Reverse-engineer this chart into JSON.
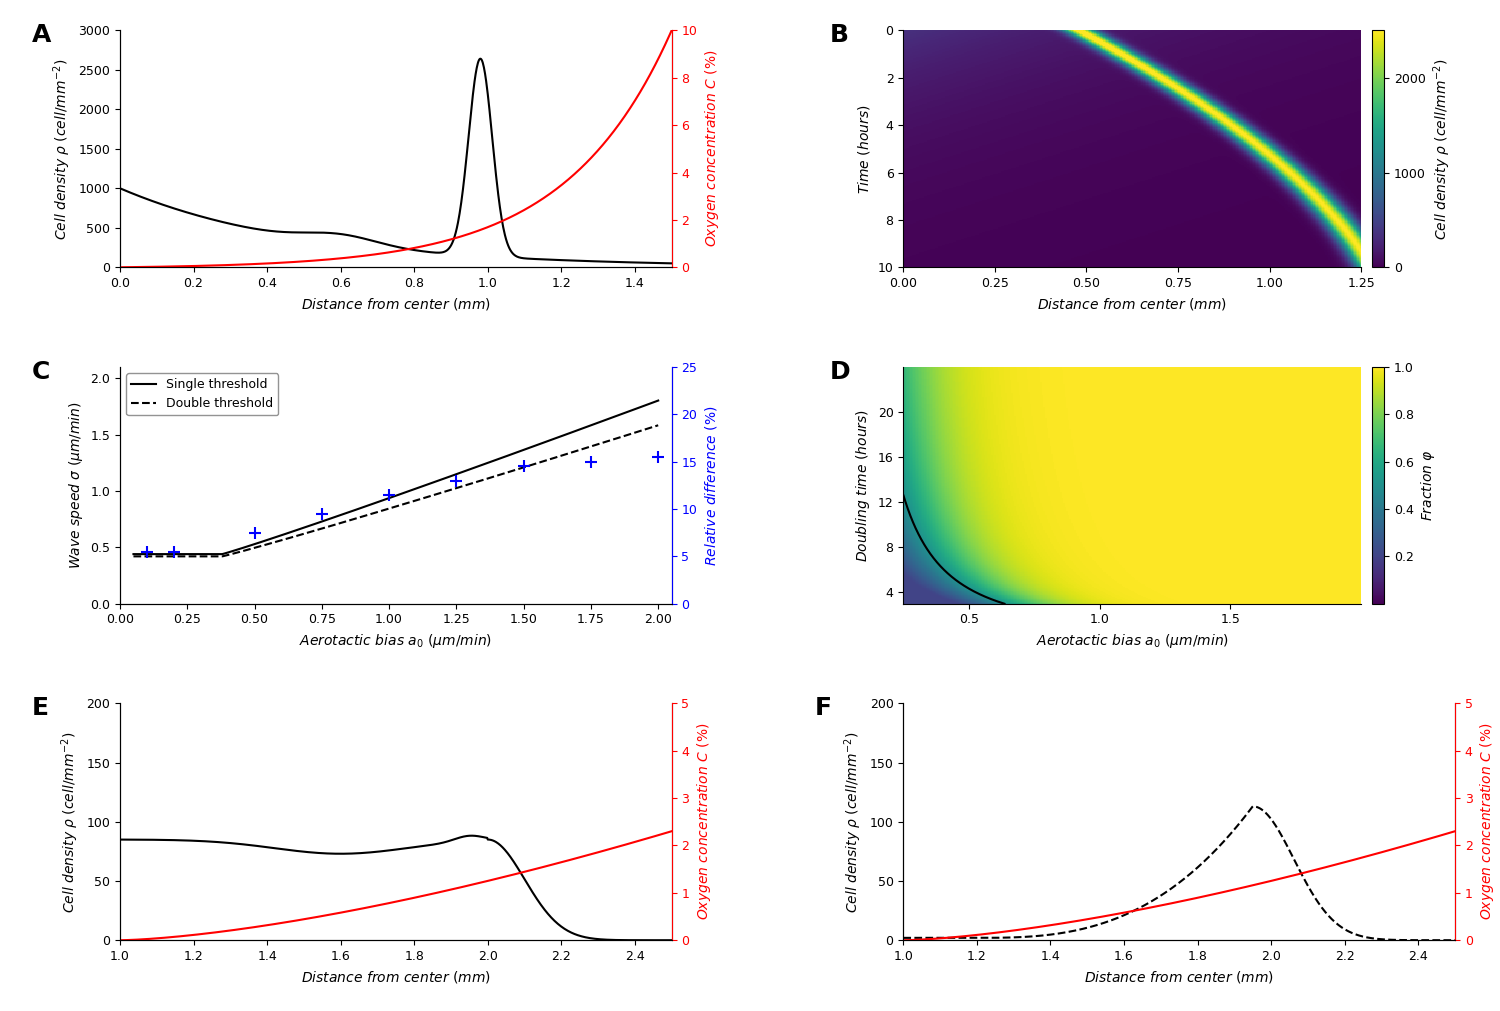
{
  "panel_label_fontsize": 18,
  "figsize": [
    15.0,
    10.11
  ],
  "A": {
    "xlim": [
      0,
      1.5
    ],
    "ylim_left": [
      0,
      3000
    ],
    "ylim_right": [
      0,
      10
    ],
    "xlabel": "Distance from center (mm)",
    "yticks_left": [
      0,
      500,
      1000,
      1500,
      2000,
      2500,
      3000
    ],
    "yticks_right": [
      0,
      2,
      4,
      6,
      8,
      10
    ],
    "xticks": [
      0.0,
      0.2,
      0.4,
      0.6,
      0.8,
      1.0,
      1.2,
      1.4
    ]
  },
  "B": {
    "xlim": [
      0,
      1.25
    ],
    "ylim": [
      0,
      10
    ],
    "xlabel": "Distance from center (mm)",
    "ylabel": "Time (hours)",
    "xticks": [
      0,
      0.25,
      0.5,
      0.75,
      1.0,
      1.25
    ],
    "yticks": [
      0,
      2,
      4,
      6,
      8,
      10
    ],
    "colorbar_ticks": [
      0,
      1000,
      2000
    ],
    "vmin": 0,
    "vmax": 2500
  },
  "C": {
    "xlim": [
      0.0,
      2.05
    ],
    "ylim_left": [
      0,
      2.1
    ],
    "ylim_right": [
      0,
      25
    ],
    "xticks": [
      0.0,
      0.25,
      0.5,
      0.75,
      1.0,
      1.25,
      1.5,
      1.75,
      2.0
    ],
    "yticks_left": [
      0.0,
      0.5,
      1.0,
      1.5,
      2.0
    ],
    "yticks_right": [
      0,
      5,
      10,
      15,
      20,
      25
    ],
    "rel_diff_a": [
      0.1,
      0.2,
      0.5,
      0.75,
      1.0,
      1.25,
      1.5,
      1.75,
      2.0
    ],
    "rel_diff_v": [
      5.5,
      5.5,
      7.5,
      9.5,
      11.5,
      13.0,
      14.5,
      15.0,
      15.5
    ]
  },
  "D": {
    "xlim": [
      0.25,
      2.0
    ],
    "ylim": [
      3,
      24
    ],
    "colorbar_ticks": [
      0.2,
      0.4,
      0.6,
      0.8,
      1.0
    ],
    "vmin": 0.0,
    "vmax": 1.0,
    "yticks": [
      4,
      8,
      12,
      16,
      20
    ],
    "xticks": [
      0.5,
      1.0,
      1.5
    ]
  },
  "E": {
    "xlim": [
      1.0,
      2.5
    ],
    "ylim_left": [
      0,
      200
    ],
    "ylim_right": [
      0,
      5
    ],
    "xlabel": "Distance from center (mm)",
    "yticks_left": [
      0,
      50,
      100,
      150,
      200
    ],
    "yticks_right": [
      0,
      1,
      2,
      3,
      4,
      5
    ],
    "xticks": [
      1.0,
      1.2,
      1.4,
      1.6,
      1.8,
      2.0,
      2.2,
      2.4
    ]
  },
  "F": {
    "xlim": [
      1.0,
      2.5
    ],
    "ylim_left": [
      0,
      200
    ],
    "ylim_right": [
      0,
      5
    ],
    "xlabel": "Distance from center (mm)",
    "yticks_left": [
      0,
      50,
      100,
      150,
      200
    ],
    "yticks_right": [
      0,
      1,
      2,
      3,
      4,
      5
    ],
    "xticks": [
      1.0,
      1.2,
      1.4,
      1.6,
      1.8,
      2.0,
      2.2,
      2.4
    ]
  }
}
